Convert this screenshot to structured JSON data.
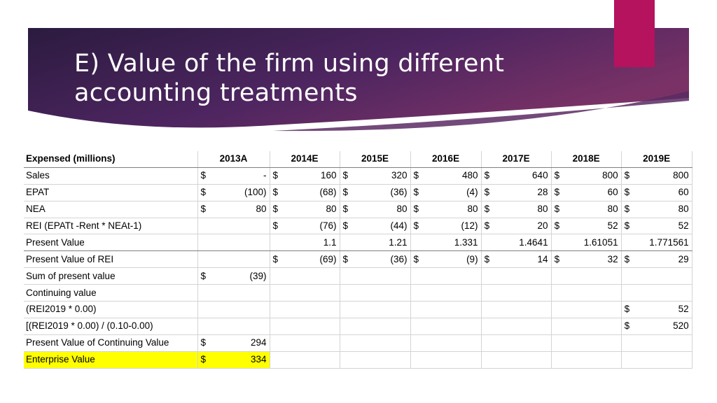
{
  "slide": {
    "title_line1": "E) Value of the firm using different",
    "title_line2": "accounting treatments",
    "colors": {
      "banner_dark": "#2b1b3f",
      "banner_mid": "#4d2560",
      "banner_light": "#7a3266",
      "accent": "#b5135e",
      "highlight": "#ffff00"
    }
  },
  "table": {
    "header_label": "Expensed (millions)",
    "years": [
      "2013A",
      "2014E",
      "2015E",
      "2016E",
      "2017E",
      "2018E",
      "2019E"
    ],
    "rows": [
      {
        "label": "Sales",
        "cells": [
          [
            "$",
            "-"
          ],
          [
            "$",
            "160"
          ],
          [
            "$",
            "320"
          ],
          [
            "$",
            "480"
          ],
          [
            "$",
            "640"
          ],
          [
            "$",
            "800"
          ],
          [
            "$",
            "800"
          ]
        ]
      },
      {
        "label": "EPAT",
        "cells": [
          [
            "$",
            "(100)"
          ],
          [
            "$",
            "(68)"
          ],
          [
            "$",
            "(36)"
          ],
          [
            "$",
            "(4)"
          ],
          [
            "$",
            "28"
          ],
          [
            "$",
            "60"
          ],
          [
            "$",
            "60"
          ]
        ]
      },
      {
        "label": "NEA",
        "cells": [
          [
            "$",
            "80"
          ],
          [
            "$",
            "80"
          ],
          [
            "$",
            "80"
          ],
          [
            "$",
            "80"
          ],
          [
            "$",
            "80"
          ],
          [
            "$",
            "80"
          ],
          [
            "$",
            "80"
          ]
        ]
      },
      {
        "label": "REI (EPATt -Rent * NEAt-1)",
        "cells": [
          [
            "",
            ""
          ],
          [
            "$",
            "(76)"
          ],
          [
            "$",
            "(44)"
          ],
          [
            "$",
            "(12)"
          ],
          [
            "$",
            "20"
          ],
          [
            "$",
            "52"
          ],
          [
            "$",
            "52"
          ]
        ]
      },
      {
        "label": "Present Value",
        "cells": [
          [
            "",
            ""
          ],
          [
            "",
            "1.1"
          ],
          [
            "",
            "1.21"
          ],
          [
            "",
            "1.331"
          ],
          [
            "",
            "1.4641"
          ],
          [
            "",
            "1.61051"
          ],
          [
            "",
            "1.771561"
          ]
        ]
      },
      {
        "label": "Present Value of REI",
        "cells": [
          [
            "",
            ""
          ],
          [
            "$",
            "(69)"
          ],
          [
            "$",
            "(36)"
          ],
          [
            "$",
            "(9)"
          ],
          [
            "$",
            "14"
          ],
          [
            "$",
            "32"
          ],
          [
            "$",
            "29"
          ]
        ]
      },
      {
        "label": "Sum of present value",
        "cells": [
          [
            "$",
            "(39)"
          ],
          [
            "",
            ""
          ],
          [
            "",
            ""
          ],
          [
            "",
            ""
          ],
          [
            "",
            ""
          ],
          [
            "",
            ""
          ],
          [
            "",
            ""
          ]
        ]
      },
      {
        "label": "Continuing value",
        "cells": [
          [
            "",
            ""
          ],
          [
            "",
            ""
          ],
          [
            "",
            ""
          ],
          [
            "",
            ""
          ],
          [
            "",
            ""
          ],
          [
            "",
            ""
          ],
          [
            "",
            ""
          ]
        ]
      },
      {
        "label": "(REI2019 * 0.00)",
        "cells": [
          [
            "",
            ""
          ],
          [
            "",
            ""
          ],
          [
            "",
            ""
          ],
          [
            "",
            ""
          ],
          [
            "",
            ""
          ],
          [
            "",
            ""
          ],
          [
            "$",
            "52"
          ]
        ]
      },
      {
        "label": "[(REI2019 * 0.00) / (0.10-0.00)",
        "cells": [
          [
            "",
            ""
          ],
          [
            "",
            ""
          ],
          [
            "",
            ""
          ],
          [
            "",
            ""
          ],
          [
            "",
            ""
          ],
          [
            "",
            ""
          ],
          [
            "$",
            "520"
          ]
        ]
      },
      {
        "label": "Present Value of Continuing Value",
        "cells": [
          [
            "$",
            "294"
          ],
          [
            "",
            ""
          ],
          [
            "",
            ""
          ],
          [
            "",
            ""
          ],
          [
            "",
            ""
          ],
          [
            "",
            ""
          ],
          [
            "",
            ""
          ]
        ]
      },
      {
        "label": "Enterprise Value",
        "cells": [
          [
            "$",
            "334"
          ],
          [
            "",
            ""
          ],
          [
            "",
            ""
          ],
          [
            "",
            ""
          ],
          [
            "",
            ""
          ],
          [
            "",
            ""
          ],
          [
            "",
            ""
          ]
        ]
      }
    ]
  }
}
